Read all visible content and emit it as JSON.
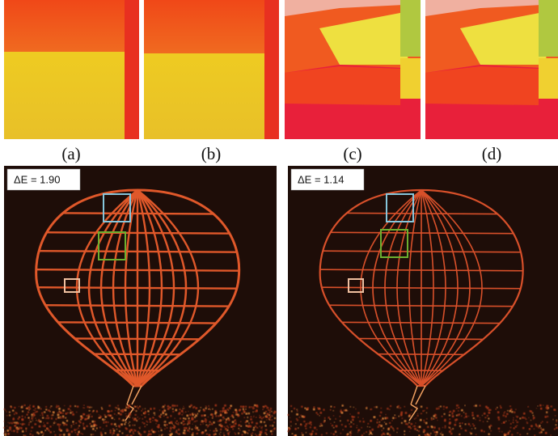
{
  "panels": [
    {
      "label": "(a)"
    },
    {
      "label": "(b)"
    },
    {
      "label": "(c)"
    },
    {
      "label": "(d)"
    }
  ],
  "error_maps": [
    {
      "label": "ΔE = 1.90"
    },
    {
      "label": "ΔE = 1.14"
    }
  ]
}
